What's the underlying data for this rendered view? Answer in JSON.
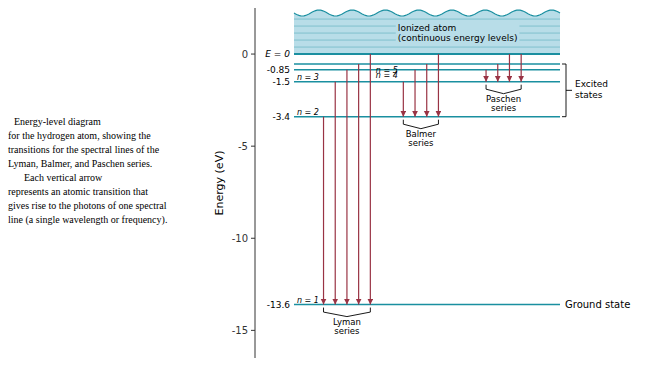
{
  "chart_data": {
    "type": "energy_level",
    "ylabel": "Energy (eV)",
    "ylim": [
      -16.5,
      2.5
    ],
    "yticks": [
      -15,
      -10,
      -5,
      0
    ],
    "levels": {
      "names": [
        "n = 1",
        "n = 2",
        "n = 3",
        "n = 4",
        "n = 5",
        null
      ],
      "values": [
        -13.6,
        -3.4,
        -1.5,
        -0.85,
        -0.54,
        0.0
      ],
      "value_labels": [
        "-13.6",
        "-3.4",
        "-1.5",
        "-0.85",
        null,
        "E = 0"
      ],
      "color": "#1a8fa0"
    },
    "series": [
      {
        "name": "Lyman\nseries",
        "values": [
          -3.4,
          -1.5,
          -0.85,
          -0.54,
          0.0
        ],
        "to": -13.6,
        "color": "#993344"
      },
      {
        "name": "Balmer\nseries",
        "values": [
          -1.5,
          -0.85,
          -0.54,
          0.0
        ],
        "to": -3.4,
        "color": "#993344"
      },
      {
        "name": "Paschen\nseries",
        "values": [
          -0.85,
          -0.54,
          0.0,
          0.0
        ],
        "to": -1.5,
        "color": "#993344"
      }
    ],
    "regions": [
      {
        "name": "Ionized atom\n(continuous energy levels)",
        "from": 0.0,
        "color": "#b8dde8"
      }
    ],
    "brackets": [
      {
        "name": "Excited\nstates",
        "from": -3.4,
        "to": -0.54
      }
    ],
    "annotations": [
      {
        "text": "Ground state",
        "y": -13.6
      }
    ],
    "notes": [
      "Energy-level diagram",
      "for the hydrogen atom, showing the",
      "transitions for the spectral lines of the",
      "Lyman, Balmer, and Paschen series.",
      "    Each vertical arrow",
      "represents an atomic transition that",
      "gives rise to the photons of one spectral",
      "line (a single wavelength or frequency)."
    ]
  }
}
